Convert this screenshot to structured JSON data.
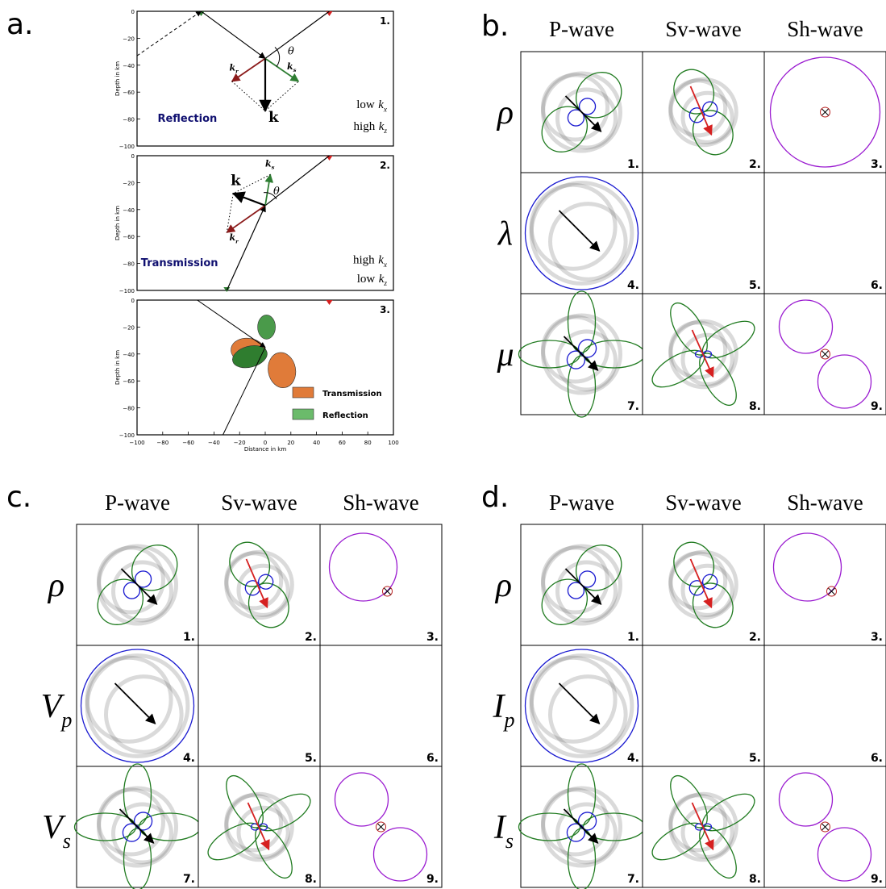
{
  "panel_a": {
    "label": "a.",
    "y_axis_label": "Depth in km",
    "x_axis_label": "Distance in km",
    "yticks": [
      "0",
      "−20",
      "−40",
      "−60",
      "−80",
      "−100"
    ],
    "xticks": [
      "−100",
      "−80",
      "−60",
      "−40",
      "−20",
      "0",
      "20",
      "40",
      "60",
      "80",
      "100"
    ],
    "subplots": [
      {
        "number": "1.",
        "title": "Reflection",
        "k_x": {
          "word": "low",
          "symbol": "k",
          "sub": "x"
        },
        "k_z": {
          "word": "high",
          "symbol": "k",
          "sub": "z"
        },
        "k": "k",
        "k_r": {
          "symbol": "k",
          "sub": "r"
        },
        "k_s": {
          "symbol": "k",
          "sub": "s"
        },
        "theta": "θ"
      },
      {
        "number": "2.",
        "title": "Transmission",
        "k_x": {
          "word": "high",
          "symbol": "k",
          "sub": "x"
        },
        "k_z": {
          "word": "low",
          "symbol": "k",
          "sub": "z"
        },
        "k": "k",
        "k_r": {
          "symbol": "k",
          "sub": "r"
        },
        "k_s": {
          "symbol": "k",
          "sub": "s"
        },
        "theta": "θ"
      },
      {
        "number": "3."
      }
    ],
    "legend": [
      "Transmission",
      "Reflection"
    ]
  },
  "grids": [
    {
      "label": "b.",
      "columns": [
        "P-wave",
        "Sv-wave",
        "Sh-wave"
      ],
      "rows": [
        {
          "symbol": "ρ"
        },
        {
          "symbol": "λ"
        },
        {
          "symbol": "μ"
        }
      ],
      "cell_numbers": [
        "1.",
        "2.",
        "3.",
        "4.",
        "5.",
        "6.",
        "7.",
        "8.",
        "9."
      ]
    },
    {
      "label": "c.",
      "columns": [
        "P-wave",
        "Sv-wave",
        "Sh-wave"
      ],
      "rows": [
        {
          "symbol": "ρ"
        },
        {
          "symbol": "V",
          "sub": "p"
        },
        {
          "symbol": "V",
          "sub": "s"
        }
      ],
      "cell_numbers": [
        "1.",
        "2.",
        "3.",
        "4.",
        "5.",
        "6.",
        "7.",
        "8.",
        "9."
      ]
    },
    {
      "label": "d.",
      "columns": [
        "P-wave",
        "Sv-wave",
        "Sh-wave"
      ],
      "rows": [
        {
          "symbol": "ρ"
        },
        {
          "symbol": "I",
          "sub": "p"
        },
        {
          "symbol": "I",
          "sub": "s"
        }
      ],
      "cell_numbers": [
        "1.",
        "2.",
        "3.",
        "4.",
        "5.",
        "6.",
        "7.",
        "8.",
        "9."
      ]
    }
  ]
}
